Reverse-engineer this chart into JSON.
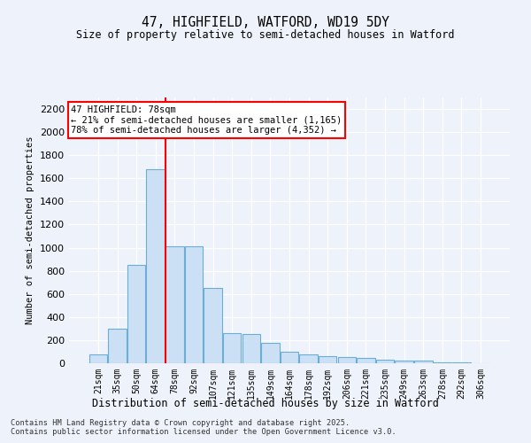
{
  "title1": "47, HIGHFIELD, WATFORD, WD19 5DY",
  "title2": "Size of property relative to semi-detached houses in Watford",
  "xlabel": "Distribution of semi-detached houses by size in Watford",
  "ylabel": "Number of semi-detached properties",
  "footnote": "Contains HM Land Registry data © Crown copyright and database right 2025.\nContains public sector information licensed under the Open Government Licence v3.0.",
  "annotation_title": "47 HIGHFIELD: 78sqm",
  "annotation_line1": "← 21% of semi-detached houses are smaller (1,165)",
  "annotation_line2": "78% of semi-detached houses are larger (4,352) →",
  "bar_categories": [
    "21sqm",
    "35sqm",
    "50sqm",
    "64sqm",
    "78sqm",
    "92sqm",
    "107sqm",
    "121sqm",
    "135sqm",
    "149sqm",
    "164sqm",
    "178sqm",
    "192sqm",
    "206sqm",
    "221sqm",
    "235sqm",
    "249sqm",
    "263sqm",
    "278sqm",
    "292sqm",
    "306sqm"
  ],
  "bar_heights": [
    75,
    300,
    850,
    1680,
    1010,
    1010,
    650,
    260,
    250,
    175,
    100,
    80,
    60,
    50,
    45,
    30,
    25,
    20,
    8,
    5,
    3
  ],
  "bar_color": "#cce0f5",
  "bar_edge_color": "#6aaed6",
  "vline_color": "red",
  "vline_index": 4,
  "ylim": [
    0,
    2300
  ],
  "yticks": [
    0,
    200,
    400,
    600,
    800,
    1000,
    1200,
    1400,
    1600,
    1800,
    2000,
    2200
  ],
  "background_color": "#eef2fa",
  "grid_color": "#ffffff"
}
